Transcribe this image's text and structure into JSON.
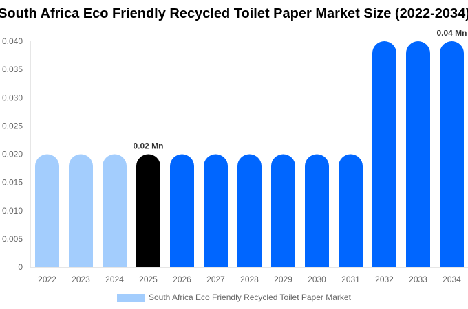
{
  "chart_data": {
    "type": "bar",
    "title": "South Africa Eco Friendly Recycled Toilet Paper Market Size (2022-2034)",
    "categories": [
      "2022",
      "2023",
      "2024",
      "2025",
      "2026",
      "2027",
      "2028",
      "2029",
      "2030",
      "2031",
      "2032",
      "2033",
      "2034"
    ],
    "series": [
      {
        "name": "South Africa Eco Friendly Recycled Toilet Paper Market",
        "values": [
          0.02,
          0.02,
          0.02,
          0.02,
          0.02,
          0.02,
          0.02,
          0.02,
          0.02,
          0.02,
          0.04,
          0.04,
          0.04
        ]
      }
    ],
    "bar_colors": [
      "#a3cdfd",
      "#a3cdfd",
      "#a3cdfd",
      "#000000",
      "#0066ff",
      "#0066ff",
      "#0066ff",
      "#0066ff",
      "#0066ff",
      "#0066ff",
      "#0066ff",
      "#0066ff",
      "#0066ff"
    ],
    "legend_color": "#a3cdfd",
    "data_labels": [
      {
        "category": "2025",
        "text": "0.02 Mn"
      },
      {
        "category": "2034",
        "text": "0.04 Mn"
      }
    ],
    "yticks": [
      "0",
      "0.005",
      "0.010",
      "0.015",
      "0.020",
      "0.025",
      "0.030",
      "0.035",
      "0.040"
    ],
    "ylim": [
      0,
      0.04
    ],
    "xlabel": "",
    "ylabel": "",
    "grid": false,
    "legend_position": "bottom"
  }
}
